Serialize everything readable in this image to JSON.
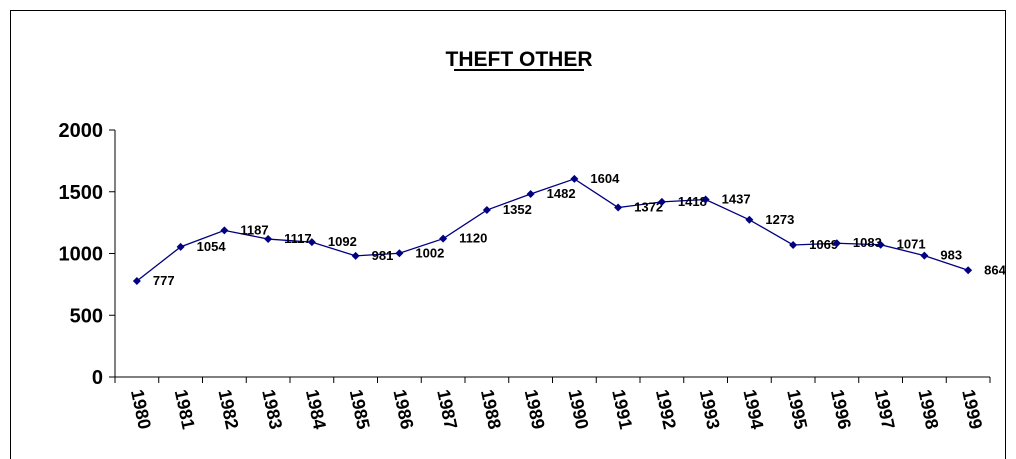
{
  "chart_data": {
    "type": "line",
    "title": "THEFT OTHER",
    "categories": [
      "1980",
      "1981",
      "1982",
      "1983",
      "1984",
      "1985",
      "1986",
      "1987",
      "1988",
      "1989",
      "1990",
      "1991",
      "1992",
      "1993",
      "1994",
      "1995",
      "1996",
      "1997",
      "1998",
      "1999"
    ],
    "series": [
      {
        "name": "THEFT OTHER",
        "color": "#000080",
        "values": [
          777,
          1054,
          1187,
          1117,
          1092,
          981,
          1002,
          1120,
          1352,
          1482,
          1604,
          1372,
          1418,
          1437,
          1273,
          1069,
          1083,
          1071,
          983,
          864
        ]
      }
    ],
    "ylim": [
      0,
      2000
    ],
    "yticks": [
      0,
      500,
      1000,
      1500,
      2000
    ],
    "grid": false
  }
}
